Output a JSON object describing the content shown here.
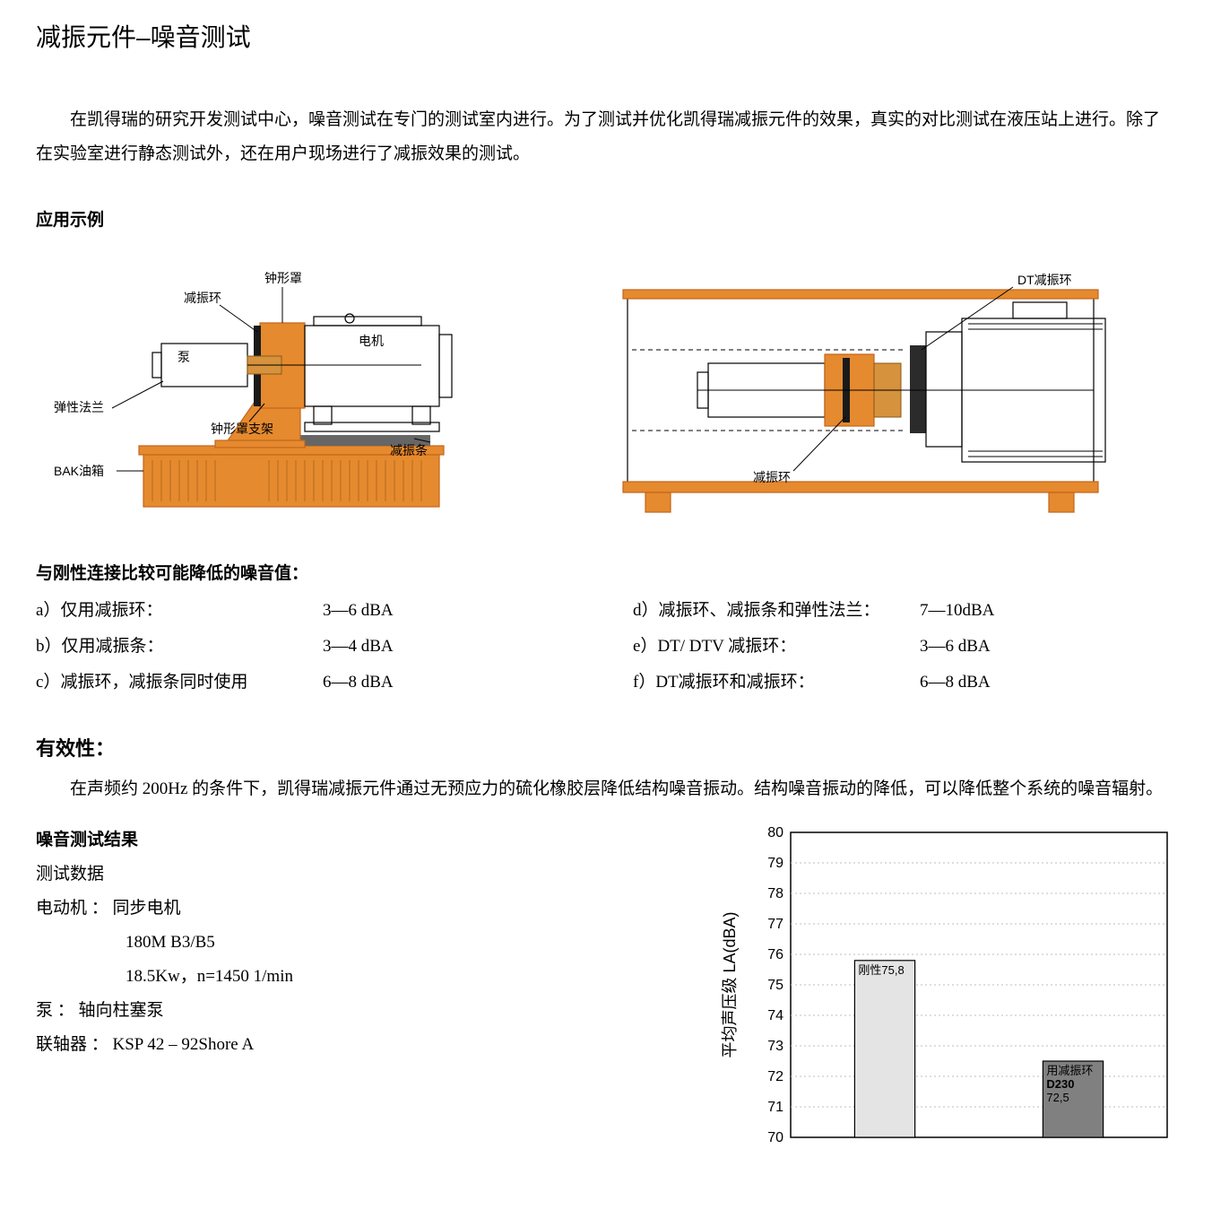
{
  "title": "减振元件–噪音测试",
  "intro": "在凯得瑞的研究开发测试中心，噪音测试在专门的测试室内进行。为了测试并优化凯得瑞减振元件的效果，真实的对比测试在液压站上进行。除了在实验室进行静态测试外，还在用户现场进行了减振效果的测试。",
  "example_heading": "应用示例",
  "diagram_left": {
    "labels": {
      "bell_housing": "钟形罩",
      "damping_ring": "减振环",
      "pump": "泵",
      "motor": "电机",
      "elastic_flange": "弹性法兰",
      "bell_support": "钟形罩支架",
      "damping_bar": "减振条",
      "tank": "BAK油箱"
    },
    "colors": {
      "orange": "#e58a2e",
      "orange_dark": "#c4641a",
      "gray": "#9a9a9a"
    }
  },
  "diagram_right": {
    "labels": {
      "dt_ring": "DT减振环",
      "damping_ring": "减振环"
    },
    "colors": {
      "orange": "#e58a2e"
    }
  },
  "noise_reduction": {
    "heading": "与刚性连接比较可能降低的噪音值：",
    "left": [
      {
        "id": "a）",
        "label": "仅用减振环：",
        "value": "3—6 dBA"
      },
      {
        "id": "b）",
        "label": "仅用减振条：",
        "value": "3—4 dBA"
      },
      {
        "id": "c）",
        "label": "减振环，减振条同时使用",
        "value": "6—8 dBA"
      }
    ],
    "right": [
      {
        "id": "d）",
        "label": "减振环、减振条和弹性法兰：",
        "value": "7—10dBA"
      },
      {
        "id": "e）",
        "label": "DT/ DTV 减振环：",
        "value": "3—6 dBA"
      },
      {
        "id": "f）",
        "label": "DT减振环和减振环：",
        "value": "6—8 dBA"
      }
    ]
  },
  "effectiveness": {
    "heading": "有效性：",
    "text": "在声频约 200Hz 的条件下，凯得瑞减振元件通过无预应力的硫化橡胶层降低结构噪音振动。结构噪音振动的降低，可以降低整个系统的噪音辐射。"
  },
  "test_results": {
    "heading": "噪音测试结果",
    "sub": "测试数据",
    "motor_label": "电动机 ：",
    "motor_val": "同步电机",
    "motor_line2": "180M   B3/B5",
    "motor_line3": "18.5Kw，n=1450 1/min",
    "pump_label": "泵 ：",
    "pump_val": "轴向柱塞泵",
    "coupling_label": "联轴器 ：",
    "coupling_val": "KSP 42 – 92Shore A"
  },
  "chart": {
    "type": "bar",
    "ylabel": "平均声压级 LA(dBA)",
    "ylim": [
      70,
      80
    ],
    "ytick_step": 1,
    "yticks": [
      70,
      71,
      72,
      73,
      74,
      75,
      76,
      77,
      78,
      79,
      80
    ],
    "background_color": "#ffffff",
    "frame_color": "#000000",
    "grid_color": "#bdbdbd",
    "grid_style": "dotted",
    "bars": [
      {
        "label_lines": [
          "刚性75,8"
        ],
        "value": 75.8,
        "fill": "#e4e4e4",
        "stroke": "#000000"
      },
      {
        "label_lines": [
          "用减振环",
          "D230",
          "72,5"
        ],
        "value": 72.5,
        "fill": "#808080",
        "stroke": "#000000"
      }
    ],
    "bar_width_ratio": 0.32,
    "label_fontsize": 13,
    "tick_fontsize": 16
  }
}
